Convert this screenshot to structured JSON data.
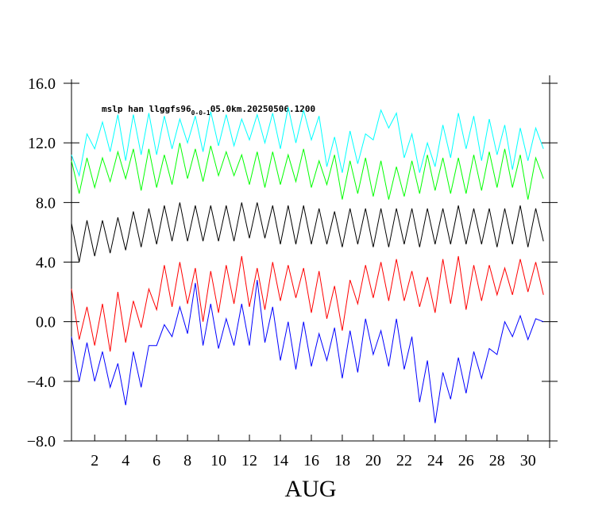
{
  "chart_data": {
    "type": "line",
    "title": "mslp han llggfs96",
    "title_subscript": "0-0-1",
    "title_suffix": "05.0km.20250506.1200",
    "x_label": "AUG",
    "x": [
      0.5,
      1,
      1.5,
      2,
      2.5,
      3,
      3.5,
      4,
      4.5,
      5,
      5.5,
      6,
      6.5,
      7,
      7.5,
      8,
      8.5,
      9,
      9.5,
      10,
      10.5,
      11,
      11.5,
      12,
      12.5,
      13,
      13.5,
      14,
      14.5,
      15,
      15.5,
      16,
      16.5,
      17,
      17.5,
      18,
      18.5,
      19,
      19.5,
      20,
      20.5,
      21,
      21.5,
      22,
      22.5,
      23,
      23.5,
      24,
      24.5,
      25,
      25.5,
      26,
      26.5,
      27,
      27.5,
      28,
      28.5,
      29,
      29.5,
      30,
      30.5,
      31
    ],
    "xlim": [
      0.5,
      31.4
    ],
    "xticks": [
      2,
      4,
      6,
      8,
      10,
      12,
      14,
      16,
      18,
      20,
      22,
      24,
      26,
      28,
      30
    ],
    "ylim": [
      -8,
      16
    ],
    "yticks": [
      {
        "value": -8,
        "label": "−8.0"
      },
      {
        "value": -4,
        "label": "−4.0"
      },
      {
        "value": 0,
        "label": "0.0"
      },
      {
        "value": 4,
        "label": "4.0"
      },
      {
        "value": 8,
        "label": "8.0"
      },
      {
        "value": 12,
        "label": "12.0"
      },
      {
        "value": 16,
        "label": "16.0"
      }
    ],
    "series": [
      {
        "color": "#00ffff",
        "values": [
          11.2,
          9.8,
          12.6,
          11.6,
          13.4,
          11.4,
          13.9,
          10.8,
          13.9,
          11.2,
          14.0,
          11.2,
          13.8,
          11.6,
          13.6,
          12.0,
          13.8,
          11.4,
          14.1,
          11.8,
          13.9,
          11.8,
          13.6,
          12.2,
          13.9,
          12.0,
          14.0,
          11.6,
          14.4,
          12.0,
          14.2,
          12.2,
          13.8,
          10.4,
          12.4,
          10.0,
          12.8,
          10.6,
          12.6,
          12.2,
          14.2,
          13.0,
          14.0,
          11.0,
          12.6,
          10.0,
          12.0,
          10.4,
          13.2,
          11.0,
          14.0,
          11.6,
          13.8,
          10.8,
          13.6,
          11.2,
          13.2,
          10.2,
          13.0,
          10.8,
          13.0,
          11.6
        ]
      },
      {
        "color": "#00ff00",
        "values": [
          10.8,
          8.6,
          11.0,
          9.0,
          11.0,
          9.4,
          11.4,
          9.6,
          11.6,
          8.8,
          11.6,
          9.0,
          11.2,
          9.2,
          12.0,
          9.6,
          11.6,
          9.4,
          11.8,
          9.8,
          11.4,
          9.8,
          11.2,
          9.2,
          11.4,
          9.0,
          11.4,
          9.2,
          11.2,
          9.4,
          11.6,
          9.0,
          10.8,
          9.2,
          11.2,
          8.2,
          10.8,
          8.6,
          11.0,
          8.4,
          10.8,
          8.2,
          10.4,
          8.4,
          10.8,
          8.6,
          11.2,
          8.8,
          11.0,
          8.6,
          11.0,
          8.6,
          11.2,
          8.8,
          11.4,
          9.0,
          11.6,
          9.0,
          11.2,
          8.2,
          11.0,
          9.6
        ]
      },
      {
        "color": "#000000",
        "values": [
          6.6,
          4.0,
          6.8,
          4.4,
          6.8,
          4.6,
          7.0,
          4.8,
          7.4,
          5.0,
          7.6,
          5.2,
          7.8,
          5.4,
          8.0,
          5.4,
          7.8,
          5.4,
          7.8,
          5.4,
          7.8,
          5.4,
          8.0,
          5.6,
          8.0,
          5.6,
          7.8,
          5.2,
          7.8,
          5.2,
          7.8,
          5.2,
          7.6,
          5.2,
          7.4,
          5.0,
          7.6,
          5.2,
          7.6,
          5.0,
          7.6,
          5.0,
          7.6,
          5.2,
          7.6,
          5.0,
          7.6,
          5.2,
          7.6,
          5.2,
          7.8,
          5.2,
          7.6,
          5.2,
          7.6,
          5.0,
          7.6,
          5.2,
          7.8,
          5.0,
          7.6,
          5.4
        ]
      },
      {
        "color": "#ff0000",
        "values": [
          2.2,
          -1.2,
          1.0,
          -1.6,
          1.2,
          -2.0,
          2.0,
          -1.4,
          1.4,
          -0.4,
          2.2,
          0.8,
          3.8,
          1.0,
          4.0,
          1.2,
          3.6,
          0.0,
          3.4,
          0.6,
          3.8,
          1.2,
          4.4,
          1.0,
          3.6,
          0.8,
          4.0,
          1.4,
          3.8,
          1.6,
          3.6,
          0.6,
          3.4,
          0.2,
          2.4,
          -0.6,
          2.8,
          1.2,
          3.8,
          1.6,
          4.0,
          1.4,
          4.2,
          1.4,
          3.4,
          1.0,
          3.0,
          0.6,
          4.2,
          1.2,
          4.4,
          0.8,
          3.8,
          1.4,
          3.8,
          1.8,
          3.6,
          1.8,
          4.2,
          2.0,
          4.0,
          1.8
        ]
      },
      {
        "color": "#0000ff",
        "values": [
          -1.0,
          -4.0,
          -1.4,
          -4.0,
          -2.0,
          -4.4,
          -2.8,
          -5.6,
          -2.0,
          -4.4,
          -1.6,
          -1.6,
          -0.2,
          -1.0,
          1.0,
          -0.8,
          2.6,
          -1.6,
          1.2,
          -1.8,
          0.2,
          -1.6,
          1.2,
          -1.6,
          2.8,
          -1.4,
          1.0,
          -2.6,
          0.0,
          -3.2,
          0.0,
          -3.0,
          -0.8,
          -2.6,
          -0.4,
          -3.8,
          -0.6,
          -3.4,
          0.2,
          -2.2,
          -0.6,
          -3.0,
          0.2,
          -3.2,
          -1.0,
          -5.4,
          -2.6,
          -6.8,
          -3.4,
          -5.2,
          -2.4,
          -4.8,
          -2.0,
          -3.8,
          -1.8,
          -2.2,
          0.0,
          -1.0,
          0.4,
          -1.2,
          0.2,
          0.0
        ]
      }
    ]
  }
}
